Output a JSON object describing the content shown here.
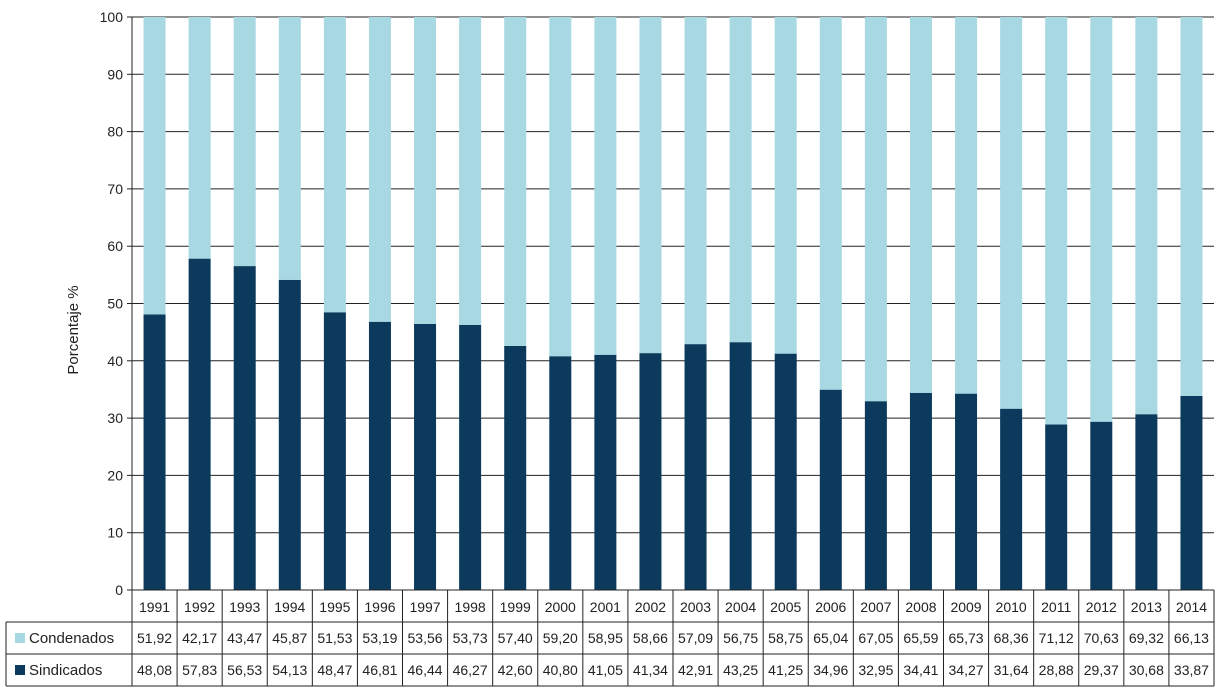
{
  "chart_data": {
    "type": "bar",
    "stacked": true,
    "ylabel": "Porcentaje %",
    "ylim": [
      0,
      100
    ],
    "yticks": [
      0,
      10,
      20,
      30,
      40,
      50,
      60,
      70,
      80,
      90,
      100
    ],
    "grid": true,
    "legend_placement": "data-table-left",
    "categories": [
      "1991",
      "1992",
      "1993",
      "1994",
      "1995",
      "1996",
      "1997",
      "1998",
      "1999",
      "2000",
      "2001",
      "2002",
      "2003",
      "2004",
      "2005",
      "2006",
      "2007",
      "2008",
      "2009",
      "2010",
      "2011",
      "2012",
      "2013",
      "2014"
    ],
    "series": [
      {
        "name": "Sindicados",
        "color": "#0b3a5c",
        "values": [
          48.08,
          57.83,
          56.53,
          54.13,
          48.47,
          46.81,
          46.44,
          46.27,
          42.6,
          40.8,
          41.05,
          41.34,
          42.91,
          43.25,
          41.25,
          34.96,
          32.95,
          34.41,
          34.27,
          31.64,
          28.88,
          29.37,
          30.68,
          33.87
        ],
        "labels": [
          "48,08",
          "57,83",
          "56,53",
          "54,13",
          "48,47",
          "46,81",
          "46,44",
          "46,27",
          "42,60",
          "40,80",
          "41,05",
          "41,34",
          "42,91",
          "43,25",
          "41,25",
          "34,96",
          "32,95",
          "34,41",
          "34,27",
          "31,64",
          "28,88",
          "29,37",
          "30,68",
          "33,87"
        ]
      },
      {
        "name": "Condenados",
        "color": "#a8d8e2",
        "values": [
          51.92,
          42.17,
          43.47,
          45.87,
          51.53,
          53.19,
          53.56,
          53.73,
          57.4,
          59.2,
          58.95,
          58.66,
          57.09,
          56.75,
          58.75,
          65.04,
          67.05,
          65.59,
          65.73,
          68.36,
          71.12,
          70.63,
          69.32,
          66.13
        ],
        "labels": [
          "51,92",
          "42,17",
          "43,47",
          "45,87",
          "51,53",
          "53,19",
          "53,56",
          "53,73",
          "57,40",
          "59,20",
          "58,95",
          "58,66",
          "57,09",
          "56,75",
          "58,75",
          "65,04",
          "67,05",
          "65,59",
          "65,73",
          "68,36",
          "71,12",
          "70,63",
          "69,32",
          "66,13"
        ]
      }
    ]
  }
}
